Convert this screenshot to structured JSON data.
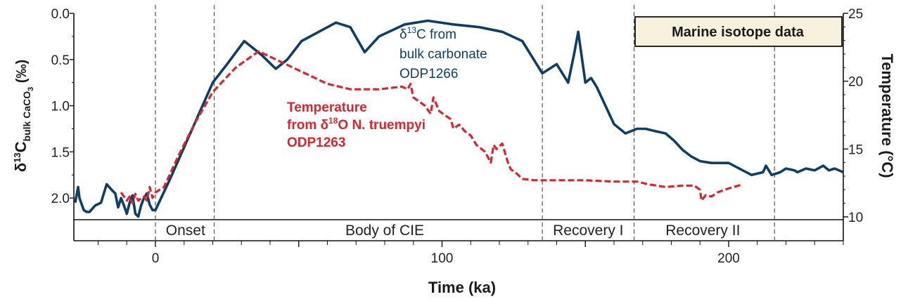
{
  "chart_data": {
    "type": "line",
    "title": "Marine isotope data",
    "xlabel": "Time (ka)",
    "xlim": [
      -28,
      240
    ],
    "x_ticks": [
      0,
      100,
      200
    ],
    "ylabel_left": {
      "main": "δ",
      "sup": "13",
      "C": "C",
      "sub": "bulk CaCO",
      "sub3": "3",
      "unit": "(‰)"
    },
    "ylim_left": [
      0.0,
      2.25
    ],
    "y_ticks_left": [
      "0.0",
      "0.5",
      "1.0",
      "1.5",
      "2.0"
    ],
    "ylabel_right": "Temperature (°C)",
    "ylim_right": [
      10,
      25
    ],
    "y_ticks_right": [
      "10",
      "15",
      "20",
      "25"
    ],
    "phase_boundaries": [
      0,
      20.5,
      135,
      167,
      216
    ],
    "phases": [
      {
        "label": "Onset",
        "x": 10.5
      },
      {
        "label": "Body of CIE",
        "x": 80
      },
      {
        "label": "Recovery I",
        "x": 151
      },
      {
        "label": "Recovery II",
        "x": 191
      }
    ],
    "series": [
      {
        "name": "δ13C from bulk carbonate ODP1266",
        "axis": "left",
        "color": "#0e3d66",
        "style": "solid",
        "label_lines": [
          {
            "pre": "δ",
            "sup": "13",
            "post": "C from"
          },
          {
            "pre": "bulk carbonate",
            "sup": "",
            "post": ""
          },
          {
            "pre": "ODP1266",
            "sup": "",
            "post": ""
          }
        ],
        "x": [
          -28,
          -27,
          -26.5,
          -25,
          -24,
          -23,
          -21,
          -19,
          -18,
          -17,
          -15,
          -14,
          -13,
          -12,
          -11,
          -10,
          -9,
          -8,
          -7,
          -6,
          -5,
          -4,
          -3,
          -2,
          -1,
          0,
          5,
          10,
          15,
          20,
          25,
          31,
          37,
          42,
          46,
          51,
          57,
          63,
          68,
          73,
          78,
          87,
          95,
          104,
          113,
          121,
          128,
          135,
          140,
          144,
          146,
          147.5,
          150,
          152,
          154,
          157,
          160,
          164,
          168,
          171,
          175,
          178,
          181,
          184,
          187,
          190,
          194,
          200,
          208,
          212,
          213,
          215,
          218,
          220,
          223,
          224,
          227,
          230,
          233,
          235,
          237,
          240
        ],
        "y": [
          2.05,
          1.88,
          2.0,
          2.13,
          2.15,
          2.15,
          2.08,
          2.05,
          1.95,
          1.85,
          1.92,
          1.95,
          2.1,
          2.0,
          2.08,
          2.17,
          2.05,
          1.97,
          2.17,
          2.2,
          2.08,
          2.0,
          1.95,
          2.07,
          2.13,
          2.13,
          1.8,
          1.45,
          1.1,
          0.75,
          0.55,
          0.3,
          0.45,
          0.6,
          0.5,
          0.3,
          0.2,
          0.1,
          0.15,
          0.42,
          0.25,
          0.12,
          0.08,
          0.12,
          0.15,
          0.2,
          0.3,
          0.65,
          0.55,
          0.75,
          0.45,
          0.2,
          0.75,
          0.7,
          0.8,
          1.0,
          1.2,
          1.3,
          1.25,
          1.25,
          1.28,
          1.3,
          1.38,
          1.48,
          1.55,
          1.6,
          1.62,
          1.62,
          1.75,
          1.72,
          1.65,
          1.75,
          1.72,
          1.68,
          1.7,
          1.72,
          1.68,
          1.7,
          1.65,
          1.7,
          1.68,
          1.72
        ]
      },
      {
        "name": "Temperature from δ18O N. truempyi ODP1263",
        "axis": "right",
        "color": "#d8262e",
        "style": "dashed",
        "label_lines": [
          {
            "pre": "Temperature",
            "sup": "",
            "post": ""
          },
          {
            "pre": "from δ",
            "sup": "18",
            "post": "O N. truempyi"
          },
          {
            "pre": "ODP1263",
            "sup": "",
            "post": ""
          }
        ],
        "x": [
          -12,
          -10,
          -9,
          -8,
          -7,
          -6,
          -4,
          -3,
          -2,
          -1,
          0,
          3,
          8,
          14,
          20,
          28,
          36,
          48,
          60,
          68,
          78,
          86,
          88,
          89,
          90,
          92,
          94,
          96,
          97,
          99,
          101,
          103,
          104,
          106,
          108,
          110,
          112,
          115,
          117,
          118,
          119,
          121,
          123,
          124,
          126,
          128,
          132,
          140,
          150,
          160,
          168,
          172,
          178,
          184,
          188,
          190,
          190.5,
          192,
          194,
          196,
          200,
          205
        ],
        "y": [
          11.8,
          11.2,
          11.5,
          11.0,
          11.7,
          11.2,
          11.5,
          11.2,
          12.2,
          11.4,
          11.8,
          12.2,
          14.5,
          17.0,
          19.2,
          21.0,
          22.2,
          21.0,
          19.8,
          19.4,
          19.4,
          19.6,
          19.4,
          19.8,
          18.8,
          18.5,
          18.2,
          17.6,
          18.8,
          17.8,
          17.5,
          17.2,
          16.5,
          16.8,
          16.3,
          16.0,
          15.3,
          14.8,
          14.0,
          15.3,
          15.0,
          15.4,
          14.0,
          13.5,
          13.2,
          12.8,
          12.7,
          12.7,
          12.7,
          12.6,
          12.6,
          12.4,
          12.2,
          12.3,
          12.3,
          12.0,
          11.2,
          11.6,
          11.5,
          11.8,
          12.1,
          12.4
        ]
      }
    ]
  }
}
